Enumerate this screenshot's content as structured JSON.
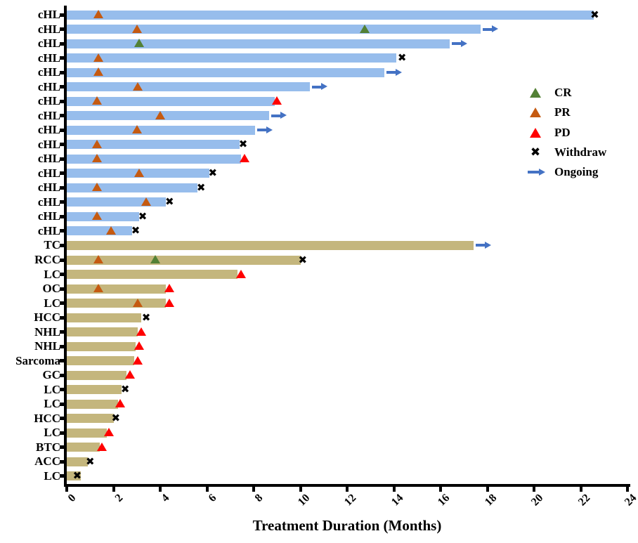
{
  "chart_data": {
    "type": "bar",
    "subtype": "swimmer-plot",
    "title": "",
    "xlabel": "Treatment Duration (Months)",
    "ylabel": "",
    "xlim": [
      0,
      24
    ],
    "xticks": [
      0,
      2,
      4,
      6,
      8,
      10,
      12,
      14,
      16,
      18,
      20,
      22,
      24
    ],
    "grid": false,
    "legend_position": "right-upper",
    "legend": [
      {
        "id": "cr",
        "label": "CR",
        "marker": "triangle",
        "color": "#538135"
      },
      {
        "id": "pr",
        "label": "PR",
        "marker": "triangle",
        "color": "#C55A11"
      },
      {
        "id": "pd",
        "label": "PD",
        "marker": "triangle",
        "color": "#FF0000"
      },
      {
        "id": "withdraw",
        "label": "Withdraw",
        "marker": "x",
        "color": "#000000"
      },
      {
        "id": "ongoing",
        "label": "Ongoing",
        "marker": "arrow",
        "color": "#4472C4"
      }
    ],
    "bar_colors": {
      "cHL": "#97BDEC",
      "other": "#C4B67D"
    },
    "rows": [
      {
        "label": "cHL",
        "group": "cHL",
        "duration": 22.55,
        "markers": [
          {
            "type": "pr",
            "x": 1.35
          },
          {
            "type": "withdraw",
            "x": 22.6
          }
        ]
      },
      {
        "label": "cHL",
        "group": "cHL",
        "duration": 17.7,
        "markers": [
          {
            "type": "pr",
            "x": 3.0
          },
          {
            "type": "cr",
            "x": 12.75
          },
          {
            "type": "ongoing",
            "x": 17.7
          }
        ]
      },
      {
        "label": "cHL",
        "group": "cHL",
        "duration": 16.4,
        "markers": [
          {
            "type": "cr",
            "x": 3.1
          },
          {
            "type": "ongoing",
            "x": 16.4
          }
        ]
      },
      {
        "label": "cHL",
        "group": "cHL",
        "duration": 14.1,
        "markers": [
          {
            "type": "pr",
            "x": 1.35
          },
          {
            "type": "withdraw",
            "x": 14.35
          }
        ]
      },
      {
        "label": "cHL",
        "group": "cHL",
        "duration": 13.6,
        "markers": [
          {
            "type": "pr",
            "x": 1.35
          },
          {
            "type": "ongoing",
            "x": 13.6
          }
        ]
      },
      {
        "label": "cHL",
        "group": "cHL",
        "duration": 10.4,
        "markers": [
          {
            "type": "pr",
            "x": 3.05
          },
          {
            "type": "ongoing",
            "x": 10.4
          }
        ]
      },
      {
        "label": "cHL",
        "group": "cHL",
        "duration": 8.9,
        "markers": [
          {
            "type": "pr",
            "x": 1.3
          },
          {
            "type": "pd",
            "x": 9.0
          }
        ]
      },
      {
        "label": "cHL",
        "group": "cHL",
        "duration": 8.65,
        "markers": [
          {
            "type": "pr",
            "x": 4.0
          },
          {
            "type": "ongoing",
            "x": 8.65
          }
        ]
      },
      {
        "label": "cHL",
        "group": "cHL",
        "duration": 8.05,
        "markers": [
          {
            "type": "pr",
            "x": 3.0
          },
          {
            "type": "ongoing",
            "x": 8.05
          }
        ]
      },
      {
        "label": "cHL",
        "group": "cHL",
        "duration": 7.4,
        "markers": [
          {
            "type": "pr",
            "x": 1.3
          },
          {
            "type": "withdraw",
            "x": 7.55
          }
        ]
      },
      {
        "label": "cHL",
        "group": "cHL",
        "duration": 7.45,
        "markers": [
          {
            "type": "pr",
            "x": 1.3
          },
          {
            "type": "pd",
            "x": 7.6
          }
        ]
      },
      {
        "label": "cHL",
        "group": "cHL",
        "duration": 6.1,
        "markers": [
          {
            "type": "pr",
            "x": 3.1
          },
          {
            "type": "withdraw",
            "x": 6.25
          }
        ]
      },
      {
        "label": "cHL",
        "group": "cHL",
        "duration": 5.6,
        "markers": [
          {
            "type": "pr",
            "x": 1.3
          },
          {
            "type": "withdraw",
            "x": 5.75
          }
        ]
      },
      {
        "label": "cHL",
        "group": "cHL",
        "duration": 4.25,
        "markers": [
          {
            "type": "pr",
            "x": 3.4
          },
          {
            "type": "withdraw",
            "x": 4.4
          }
        ]
      },
      {
        "label": "cHL",
        "group": "cHL",
        "duration": 3.1,
        "markers": [
          {
            "type": "pr",
            "x": 1.3
          },
          {
            "type": "withdraw",
            "x": 3.25
          }
        ]
      },
      {
        "label": "cHL",
        "group": "cHL",
        "duration": 2.8,
        "markers": [
          {
            "type": "pr",
            "x": 1.9
          },
          {
            "type": "withdraw",
            "x": 2.95
          }
        ]
      },
      {
        "label": "TC",
        "group": "other",
        "duration": 17.4,
        "markers": [
          {
            "type": "ongoing",
            "x": 17.4
          }
        ]
      },
      {
        "label": "RCC",
        "group": "other",
        "duration": 10.0,
        "markers": [
          {
            "type": "pr",
            "x": 1.35
          },
          {
            "type": "cr",
            "x": 3.8
          },
          {
            "type": "withdraw",
            "x": 10.1
          }
        ]
      },
      {
        "label": "LC",
        "group": "other",
        "duration": 7.3,
        "markers": [
          {
            "type": "pd",
            "x": 7.45
          }
        ]
      },
      {
        "label": "OC",
        "group": "other",
        "duration": 4.25,
        "markers": [
          {
            "type": "pr",
            "x": 1.35
          },
          {
            "type": "pd",
            "x": 4.4
          }
        ]
      },
      {
        "label": "LC",
        "group": "other",
        "duration": 4.25,
        "markers": [
          {
            "type": "pr",
            "x": 3.05
          },
          {
            "type": "pd",
            "x": 4.4
          }
        ]
      },
      {
        "label": "HCC",
        "group": "other",
        "duration": 3.2,
        "markers": [
          {
            "type": "withdraw",
            "x": 3.4
          }
        ]
      },
      {
        "label": "NHL",
        "group": "other",
        "duration": 3.05,
        "markers": [
          {
            "type": "pd",
            "x": 3.2
          }
        ]
      },
      {
        "label": "NHL",
        "group": "other",
        "duration": 2.95,
        "markers": [
          {
            "type": "pd",
            "x": 3.1
          }
        ]
      },
      {
        "label": "Sarcoma",
        "group": "other",
        "duration": 2.9,
        "markers": [
          {
            "type": "pd",
            "x": 3.05
          }
        ]
      },
      {
        "label": "GC",
        "group": "other",
        "duration": 2.55,
        "markers": [
          {
            "type": "pd",
            "x": 2.7
          }
        ]
      },
      {
        "label": "LC",
        "group": "other",
        "duration": 2.35,
        "markers": [
          {
            "type": "withdraw",
            "x": 2.5
          }
        ]
      },
      {
        "label": "LC",
        "group": "other",
        "duration": 2.2,
        "markers": [
          {
            "type": "pd",
            "x": 2.3
          }
        ]
      },
      {
        "label": "HCC",
        "group": "other",
        "duration": 2.0,
        "markers": [
          {
            "type": "withdraw",
            "x": 2.1
          }
        ]
      },
      {
        "label": "LC",
        "group": "other",
        "duration": 1.7,
        "markers": [
          {
            "type": "pd",
            "x": 1.8
          }
        ]
      },
      {
        "label": "BTC",
        "group": "other",
        "duration": 1.4,
        "markers": [
          {
            "type": "pd",
            "x": 1.5
          }
        ]
      },
      {
        "label": "ACC",
        "group": "other",
        "duration": 0.9,
        "markers": [
          {
            "type": "withdraw",
            "x": 1.0
          }
        ]
      },
      {
        "label": "LC",
        "group": "other",
        "duration": 0.6,
        "markers": [
          {
            "type": "withdraw",
            "x": 0.45
          }
        ]
      }
    ]
  }
}
